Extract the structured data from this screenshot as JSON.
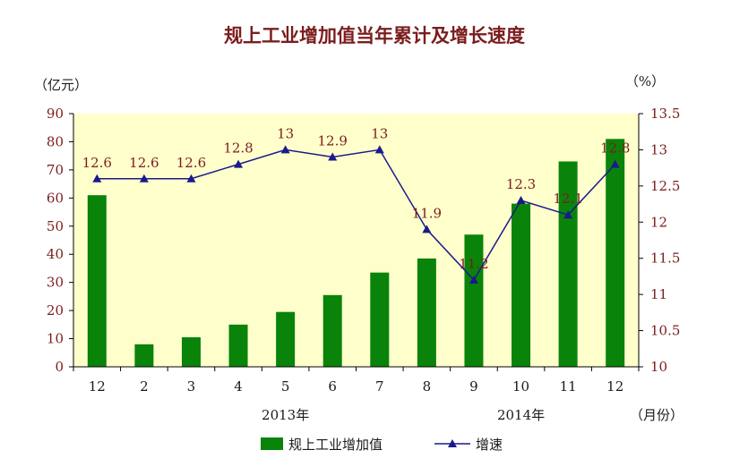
{
  "chart_data": {
    "type": "bar+line",
    "title": "规上工业增加值当年累计及增长速度",
    "y_left_unit": "（亿元）",
    "y_right_unit": "（%）",
    "x_unit": "（月份）",
    "categories": [
      "12",
      "2",
      "3",
      "4",
      "5",
      "6",
      "7",
      "8",
      "9",
      "10",
      "11",
      "12"
    ],
    "year_labels": [
      {
        "text": "2013年",
        "category_index": 4
      },
      {
        "text": "2014年",
        "category_index": 9
      }
    ],
    "y_left": {
      "min": 0,
      "max": 90,
      "step": 10,
      "ticks": [
        "0",
        "10",
        "20",
        "30",
        "40",
        "50",
        "60",
        "70",
        "80",
        "90"
      ]
    },
    "y_right": {
      "min": 10,
      "max": 13.5,
      "step": 0.5,
      "ticks": [
        "10",
        "10.5",
        "11",
        "11.5",
        "12",
        "12.5",
        "13",
        "13.5"
      ]
    },
    "series": [
      {
        "name": "规上工业增加值",
        "kind": "bar",
        "axis": "left",
        "color": "#0a830a",
        "values": [
          61,
          8,
          10.5,
          15,
          19.5,
          25.5,
          33.5,
          38.5,
          47,
          58,
          73,
          81
        ]
      },
      {
        "name": "增速",
        "kind": "line",
        "axis": "right",
        "color": "#1a1a8c",
        "values": [
          12.6,
          12.6,
          12.6,
          12.8,
          13,
          12.9,
          13,
          11.9,
          11.2,
          12.3,
          12.1,
          12.8
        ],
        "labels": [
          "12.6",
          "12.6",
          "12.6",
          "12.8",
          "13",
          "12.9",
          "13",
          "11.9",
          "11.2",
          "12.3",
          "12.1",
          "12.8"
        ]
      }
    ],
    "plot_background": "#ffffcc",
    "grid": false,
    "legend_position": "bottom"
  }
}
